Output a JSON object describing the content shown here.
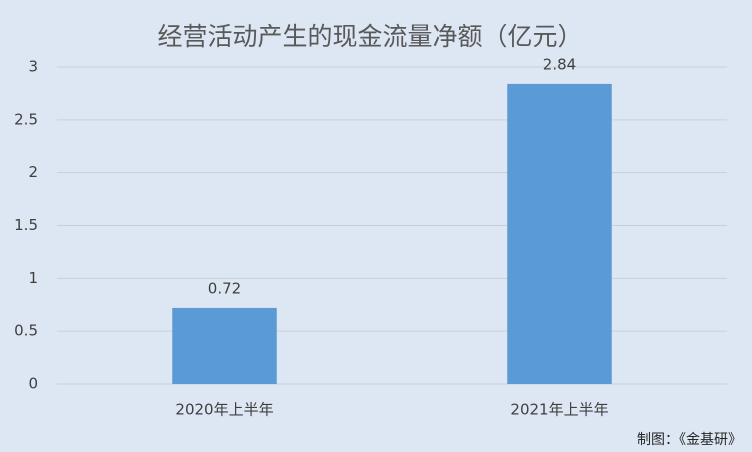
{
  "chart_data": {
    "type": "bar",
    "title": "经营活动产生的现金流量净额（亿元）",
    "categories": [
      "2020年上半年",
      "2021年上半年"
    ],
    "values": [
      0.72,
      2.84
    ],
    "color": "#5b9bd5",
    "ylim": [
      0,
      3
    ],
    "yticks": [
      0,
      0.5,
      1,
      1.5,
      2,
      2.5,
      3
    ],
    "grid": true,
    "source": "制图：《金基研》"
  }
}
